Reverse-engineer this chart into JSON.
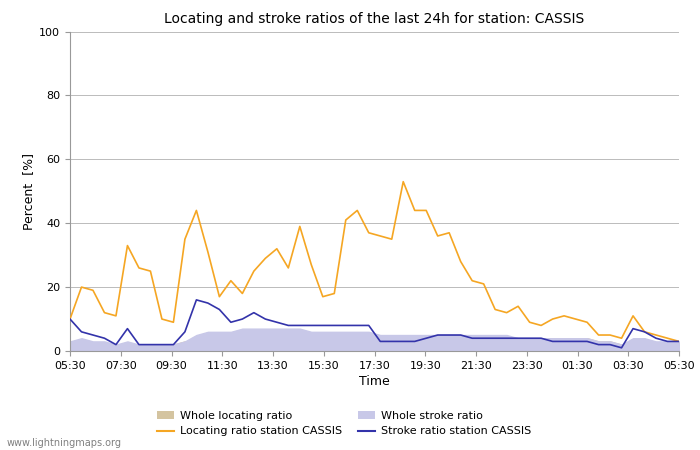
{
  "title": "Locating and stroke ratios of the last 24h for station: CASSIS",
  "xlabel": "Time",
  "ylabel": "Percent  [%]",
  "ylim": [
    0,
    100
  ],
  "yticks": [
    0,
    20,
    40,
    60,
    80,
    100
  ],
  "xtick_labels": [
    "05:30",
    "07:30",
    "09:30",
    "11:30",
    "13:30",
    "15:30",
    "17:30",
    "19:30",
    "21:30",
    "23:30",
    "01:30",
    "03:30",
    "05:30"
  ],
  "watermark": "www.lightningmaps.org",
  "bg_color": "#ffffff",
  "plot_bg_color": "#ffffff",
  "grid_color": "#bbbbbb",
  "locating_ratio_color": "#f5a623",
  "stroke_ratio_color": "#3333aa",
  "whole_locating_fill_color": "#d4c4a0",
  "whole_stroke_fill_color": "#c8c8e8",
  "locating_station": [
    10,
    20,
    19,
    12,
    11,
    33,
    26,
    25,
    10,
    9,
    35,
    44,
    31,
    17,
    22,
    18,
    25,
    29,
    32,
    26,
    39,
    27,
    17,
    18,
    41,
    44,
    37,
    36,
    35,
    53,
    44,
    44,
    36,
    37,
    28,
    22,
    21,
    13,
    12,
    14,
    9,
    8,
    10,
    11,
    10,
    9,
    5,
    5,
    4,
    11,
    6,
    5,
    4,
    3
  ],
  "stroke_ratio_station": [
    10,
    6,
    5,
    4,
    2,
    7,
    2,
    2,
    2,
    2,
    6,
    16,
    15,
    13,
    9,
    10,
    12,
    10,
    9,
    8,
    8,
    8,
    8,
    8,
    8,
    8,
    8,
    3,
    3,
    3,
    3,
    4,
    5,
    5,
    5,
    4,
    4,
    4,
    4,
    4,
    4,
    4,
    3,
    3,
    3,
    3,
    2,
    2,
    1,
    7,
    6,
    4,
    3,
    3
  ],
  "whole_locating": [
    2,
    2,
    2,
    2,
    2,
    2,
    2,
    2,
    2,
    2,
    3,
    3,
    4,
    4,
    4,
    4,
    4,
    4,
    4,
    4,
    4,
    4,
    4,
    4,
    4,
    4,
    4,
    4,
    4,
    4,
    4,
    4,
    4,
    4,
    4,
    4,
    4,
    4,
    4,
    4,
    4,
    4,
    4,
    4,
    4,
    4,
    3,
    3,
    2,
    2,
    2,
    2,
    2,
    2
  ],
  "whole_stroke": [
    3,
    4,
    3,
    3,
    2,
    3,
    2,
    2,
    2,
    2,
    3,
    5,
    6,
    6,
    6,
    7,
    7,
    7,
    7,
    7,
    7,
    6,
    6,
    6,
    6,
    6,
    6,
    5,
    5,
    5,
    5,
    5,
    5,
    5,
    5,
    5,
    5,
    5,
    5,
    4,
    4,
    4,
    4,
    4,
    4,
    4,
    3,
    3,
    2,
    4,
    4,
    3,
    3,
    3
  ]
}
